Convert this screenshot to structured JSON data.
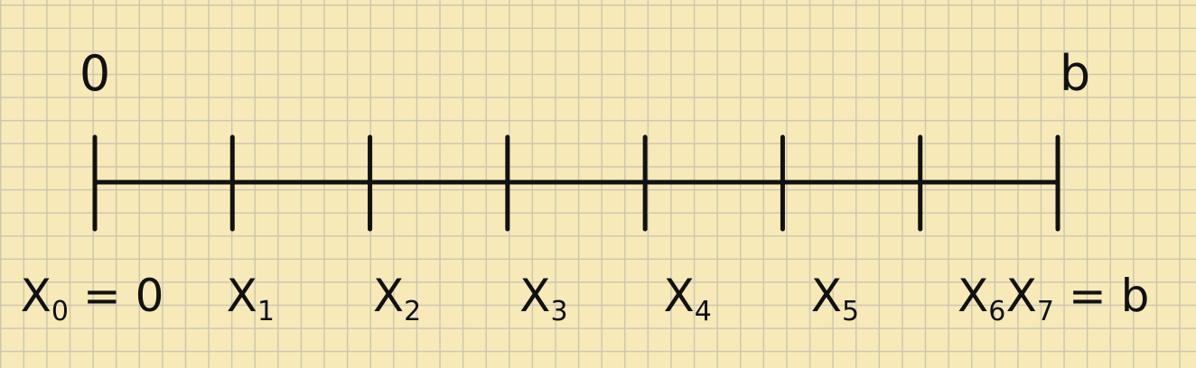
{
  "endpoint_labels": {
    "left": "0",
    "right": "b"
  },
  "points": [
    {
      "name": "X",
      "sub": "0",
      "suffix": "= 0"
    },
    {
      "name": "X",
      "sub": "1",
      "suffix": ""
    },
    {
      "name": "X",
      "sub": "2",
      "suffix": ""
    },
    {
      "name": "X",
      "sub": "3",
      "suffix": ""
    },
    {
      "name": "X",
      "sub": "4",
      "suffix": ""
    },
    {
      "name": "X",
      "sub": "5",
      "suffix": ""
    },
    {
      "name": "X",
      "sub": "6",
      "suffix": ""
    },
    {
      "name": "X",
      "sub": "7",
      "suffix": "= b"
    }
  ],
  "colors": {
    "paper": "#f7eab8",
    "grid": "#cdc7ad",
    "ink": "#111111"
  }
}
